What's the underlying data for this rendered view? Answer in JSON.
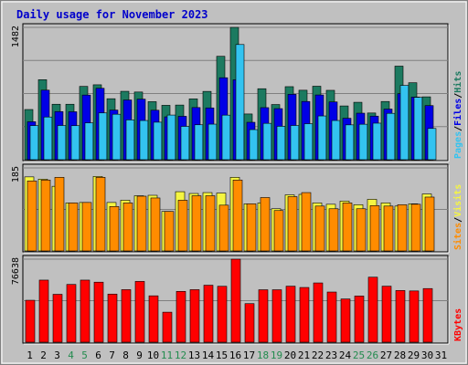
{
  "chart_data": {
    "type": "bar",
    "title": "Daily usage for November 2023",
    "days": [
      "1",
      "2",
      "3",
      "4",
      "5",
      "6",
      "7",
      "8",
      "9",
      "10",
      "11",
      "12",
      "13",
      "14",
      "15",
      "16",
      "17",
      "18",
      "19",
      "20",
      "21",
      "22",
      "23",
      "24",
      "25",
      "26",
      "27",
      "28",
      "29",
      "30",
      "31"
    ],
    "weekend_days": [
      "4",
      "5",
      "11",
      "12",
      "18",
      "19",
      "25",
      "26"
    ],
    "colors": {
      "background": "#c0c0c0",
      "plot": "#c0c0c0",
      "title": "#0000cc",
      "hits": "#1c7a60",
      "files": "#0000e6",
      "pages": "#33c3f0",
      "visits": "#f5f542",
      "sites": "#ff8c00",
      "kbytes": "#ff0000",
      "weekday_label": "#000000",
      "weekend_label": "#228b4e"
    },
    "panels": [
      {
        "name": "hits-files-pages",
        "ymax_label": "1482",
        "ymax": 1482,
        "legend": [
          {
            "label": "Pages",
            "color": "#33c3f0"
          },
          {
            "label": "/",
            "color": "#000000"
          },
          {
            "label": "Files",
            "color": "#0000e6"
          },
          {
            "label": "/",
            "color": "#000000"
          },
          {
            "label": "Hits",
            "color": "#1c7a60"
          }
        ],
        "series": [
          {
            "name": "Hits",
            "color": "#1c7a60",
            "values": [
              562,
              896,
              621,
              621,
              821,
              839,
              683,
              766,
              758,
              650,
              609,
              612,
              681,
              765,
              1158,
              1482,
              512,
              795,
              618,
              818,
              778,
              823,
              777,
              602,
              643,
              523,
              652,
              1048,
              862,
              704,
              0
            ]
          },
          {
            "name": "Files",
            "color": "#0000e6",
            "values": [
              425,
              779,
              539,
              537,
              724,
              800,
              556,
              669,
              678,
              554,
              480,
              486,
              584,
              580,
              918,
              895,
              419,
              583,
              572,
              732,
              652,
              725,
              647,
              464,
              521,
              488,
              567,
              740,
              701,
              606,
              0
            ]
          },
          {
            "name": "Pages",
            "color": "#33c3f0",
            "values": [
              382,
              478,
              383,
              381,
              413,
              524,
              509,
              446,
              439,
              420,
              500,
              373,
              391,
              398,
              499,
              1290,
              337,
              407,
              374,
              383,
              403,
              490,
              439,
              390,
              397,
              409,
              519,
              832,
              698,
              350,
              0
            ]
          }
        ]
      },
      {
        "name": "visits-sites",
        "ymax_label": "185",
        "ymax": 185,
        "legend": [
          {
            "label": "Sites",
            "color": "#ff8c00"
          },
          {
            "label": "/",
            "color": "#000000"
          },
          {
            "label": "Visits",
            "color": "#f5f542"
          }
        ],
        "series": [
          {
            "name": "Visits",
            "color": "#f5f542",
            "values": [
              165,
              160,
              144,
              107,
              108,
              166,
              108,
              113,
              123,
              124,
              88,
              132,
              128,
              130,
              129,
              164,
              105,
              107,
              94,
              125,
              126,
              107,
              104,
              111,
              103,
              115,
              107,
              100,
              105,
              127,
              0
            ]
          },
          {
            "name": "Sites",
            "color": "#ff8c00",
            "values": [
              156,
              158,
              164,
              107,
              108,
              164,
              99,
              107,
              122,
              118,
              88,
              113,
              123,
              123,
              102,
              158,
              105,
              119,
              90,
              121,
              130,
              100,
              94,
              107,
              94,
              101,
              100,
              103,
              104,
              120,
              0
            ]
          }
        ]
      },
      {
        "name": "kbytes",
        "ymax_label": "76638",
        "ymax": 76638,
        "legend": [
          {
            "label": "KBytes",
            "color": "#ff0000"
          }
        ],
        "series": [
          {
            "name": "KBytes",
            "color": "#ff0000",
            "values": [
              38700,
              57300,
              44200,
              53300,
              57300,
              55400,
              44400,
              48500,
              56100,
              42800,
              27700,
              46900,
              48500,
              52600,
              51600,
              76638,
              35600,
              48400,
              48400,
              51700,
              50500,
              54700,
              46300,
              39900,
              42600,
              60000,
              51700,
              47700,
              47300,
              49500,
              0
            ]
          }
        ]
      }
    ]
  }
}
